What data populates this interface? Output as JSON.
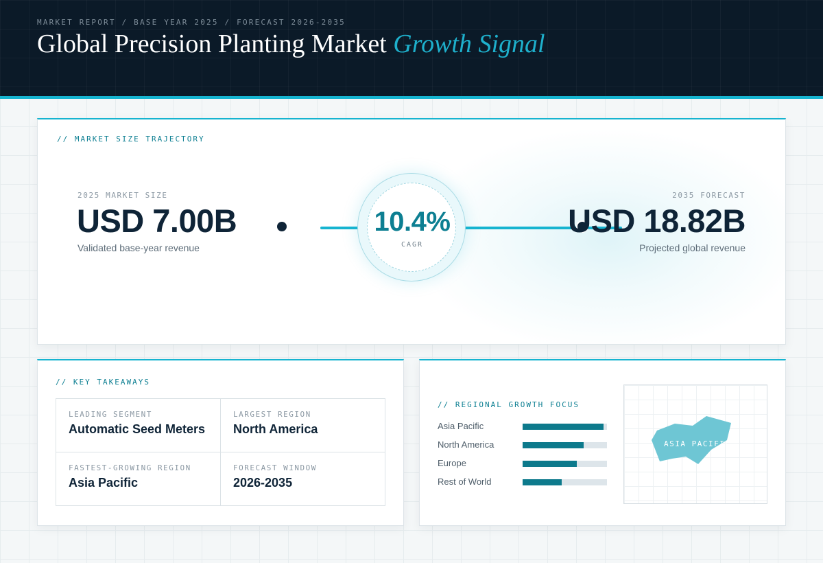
{
  "header": {
    "eyebrow": "MARKET REPORT / BASE YEAR 2025 / FORECAST 2026-2035",
    "title_main": "Global Precision Planting Market",
    "title_accent": "Growth Signal"
  },
  "trajectory": {
    "section_label": "// MARKET SIZE TRAJECTORY",
    "base": {
      "label": "2025 MARKET SIZE",
      "value": "USD 7.00B",
      "sub": "Validated base-year revenue"
    },
    "forecast": {
      "label": "2035 FORECAST",
      "value": "USD 18.82B",
      "sub": "Projected global revenue"
    },
    "cagr": {
      "value": "10.4%",
      "label": "CAGR"
    }
  },
  "takeaways": {
    "section_label": "// KEY TAKEAWAYS",
    "items": [
      {
        "key": "LEADING SEGMENT",
        "value": "Automatic Seed Meters"
      },
      {
        "key": "LARGEST REGION",
        "value": "North America"
      },
      {
        "key": "FASTEST-GROWING REGION",
        "value": "Asia Pacific"
      },
      {
        "key": "FORECAST WINDOW",
        "value": "2026-2035"
      }
    ]
  },
  "regional": {
    "section_label": "// REGIONAL GROWTH FOCUS",
    "rows": [
      {
        "name": "Asia Pacific",
        "level": 0.96
      },
      {
        "name": "North America",
        "level": 0.72
      },
      {
        "name": "Europe",
        "level": 0.64
      },
      {
        "name": "Rest of World",
        "level": 0.46
      }
    ],
    "map_label": "ASIA PACIFIC"
  },
  "colors": {
    "accent": "#16b4d0",
    "accent_dark": "#0d7f92",
    "navy": "#0b1a28",
    "ink": "#0f2437"
  }
}
